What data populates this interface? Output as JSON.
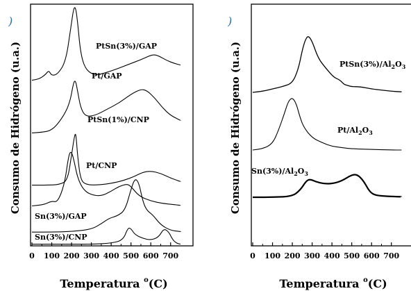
{
  "chart_data": [
    {
      "type": "line",
      "panel_mark": ")",
      "ylabel": "Consumo de Hidrógeno (u.a.)",
      "xlabel": "Temperatura °(C)",
      "xlabel_parts": {
        "main": "Temperatura ",
        "sup": "o",
        "unit": "(C)"
      },
      "xlim": [
        0,
        750
      ],
      "xticks": [
        0,
        100,
        200,
        300,
        400,
        500,
        600,
        700
      ],
      "xtick_labels": [
        "0",
        "100",
        "200",
        "300",
        "400",
        "500",
        "600",
        "700"
      ],
      "series": [
        {
          "name": "PtSn(3%)/GAP",
          "label_parts": {
            "pre": "PtSn(3%)/GAP",
            "sub": "",
            "post": ""
          },
          "width": 1.1,
          "x": [
            0,
            40,
            70,
            85,
            100,
            130,
            170,
            195,
            210,
            220,
            230,
            245,
            270,
            320,
            400,
            480,
            560,
            610,
            640,
            680,
            720,
            750
          ],
          "y": [
            0.04,
            0.06,
            0.12,
            0.17,
            0.1,
            0.12,
            0.28,
            0.7,
            0.98,
            1.0,
            0.82,
            0.4,
            0.18,
            0.1,
            0.16,
            0.24,
            0.32,
            0.38,
            0.36,
            0.3,
            0.26,
            0.24
          ]
        },
        {
          "name": "Pt/GAP",
          "label_parts": {
            "pre": "Pt/GAP",
            "sub": "",
            "post": ""
          },
          "width": 1.1,
          "x": [
            0,
            50,
            100,
            150,
            190,
            210,
            220,
            230,
            245,
            270,
            320,
            380,
            440,
            500,
            550,
            580,
            620,
            660,
            700,
            750
          ],
          "y": [
            0.04,
            0.05,
            0.08,
            0.26,
            0.5,
            0.85,
            0.88,
            0.72,
            0.45,
            0.3,
            0.32,
            0.42,
            0.52,
            0.66,
            0.74,
            0.72,
            0.6,
            0.44,
            0.32,
            0.24
          ]
        },
        {
          "name": "PtSn(1%)/CNP",
          "label_parts": {
            "pre": "PtSn(1%)/CNP",
            "sub": "",
            "post": ""
          },
          "width": 1.1,
          "x": [
            0,
            80,
            140,
            180,
            200,
            215,
            222,
            230,
            245,
            270,
            330,
            420,
            500,
            560,
            600,
            650,
            700,
            750
          ],
          "y": [
            0.04,
            0.04,
            0.05,
            0.12,
            0.55,
            0.88,
            0.92,
            0.55,
            0.14,
            0.05,
            0.04,
            0.08,
            0.16,
            0.26,
            0.28,
            0.24,
            0.16,
            0.1
          ]
        },
        {
          "name": "Pt/CNP",
          "label_parts": {
            "pre": "Pt/CNP",
            "sub": "",
            "post": ""
          },
          "width": 1.1,
          "x": [
            0,
            60,
            100,
            130,
            165,
            185,
            197,
            210,
            230,
            260,
            300,
            350,
            400,
            440,
            480,
            500,
            540,
            600,
            660,
            720,
            750
          ],
          "y": [
            0.04,
            0.06,
            0.12,
            0.1,
            0.4,
            0.86,
            0.94,
            0.82,
            0.5,
            0.3,
            0.22,
            0.2,
            0.28,
            0.36,
            0.4,
            0.36,
            0.2,
            0.12,
            0.08,
            0.06,
            0.05
          ]
        },
        {
          "name": "Sn(3%)/GAP",
          "label_parts": {
            "pre": "Sn(3%)/GAP",
            "sub": "",
            "post": ""
          },
          "width": 1.1,
          "x": [
            0,
            100,
            200,
            300,
            350,
            390,
            430,
            470,
            500,
            520,
            540,
            560,
            580,
            610,
            650,
            700,
            750
          ],
          "y": [
            0.01,
            0.01,
            0.02,
            0.06,
            0.16,
            0.26,
            0.3,
            0.4,
            0.78,
            0.98,
            0.9,
            0.56,
            0.4,
            0.32,
            0.14,
            0.04,
            0.02
          ]
        },
        {
          "name": "Sn(3%)/CNP",
          "label_parts": {
            "pre": "Sn(3%)/CNP",
            "sub": "",
            "post": ""
          },
          "width": 1.1,
          "x": [
            0,
            100,
            200,
            300,
            400,
            460,
            485,
            500,
            520,
            560,
            600,
            640,
            665,
            690,
            710,
            730,
            750
          ],
          "y": [
            0.01,
            0.01,
            0.01,
            0.01,
            0.04,
            0.14,
            0.55,
            0.52,
            0.32,
            0.2,
            0.14,
            0.24,
            0.52,
            0.42,
            0.16,
            0.04,
            0.01
          ]
        }
      ]
    },
    {
      "type": "line",
      "panel_mark": ")",
      "ylabel": "Consumo de Hidrógeno (u.a.)",
      "xlabel": "Temperatura °(C)",
      "xlabel_parts": {
        "main": "Temperatura ",
        "sup": "o",
        "unit": "(C)"
      },
      "xlim": [
        0,
        750
      ],
      "xticks": [
        0,
        100,
        200,
        300,
        400,
        500,
        600,
        700
      ],
      "xtick_labels": [
        "0",
        "100",
        "200",
        "300",
        "400",
        "500",
        "600",
        "700"
      ],
      "series": [
        {
          "name": "PtSn(3%)/Al2O3",
          "label_parts": {
            "pre": "PtSn(3%)/Al",
            "sub": "2",
            "post": "O",
            "sub2": "3"
          },
          "width": 1.3,
          "x": [
            0,
            50,
            100,
            150,
            200,
            230,
            250,
            265,
            280,
            300,
            330,
            370,
            410,
            440,
            460,
            480,
            500,
            540,
            600,
            650,
            700,
            750
          ],
          "y": [
            0.0,
            0.02,
            0.06,
            0.1,
            0.16,
            0.4,
            0.74,
            0.92,
            1.0,
            0.9,
            0.6,
            0.42,
            0.26,
            0.22,
            0.14,
            0.12,
            0.1,
            0.1,
            0.06,
            0.04,
            0.02,
            0.01
          ]
        },
        {
          "name": "Pt/Al2O3",
          "label_parts": {
            "pre": "Pt/Al",
            "sub": "2",
            "post": "O",
            "sub2": "3"
          },
          "width": 1.1,
          "x": [
            0,
            50,
            100,
            130,
            160,
            180,
            200,
            220,
            240,
            260,
            300,
            350,
            400,
            450,
            500,
            600,
            700,
            750
          ],
          "y": [
            0.0,
            0.02,
            0.1,
            0.32,
            0.6,
            0.8,
            0.86,
            0.76,
            0.52,
            0.36,
            0.2,
            0.12,
            0.06,
            0.04,
            0.02,
            0.01,
            0.0,
            0.0
          ]
        },
        {
          "name": "Sn(3%)/Al2O3",
          "label_parts": {
            "pre": "Sn(3%)/Al",
            "sub": "2",
            "post": "O",
            "sub2": "3"
          },
          "width": 2.2,
          "x": [
            0,
            100,
            200,
            240,
            270,
            290,
            320,
            360,
            400,
            450,
            500,
            530,
            560,
            590,
            620,
            680,
            750
          ],
          "y": [
            0.0,
            0.0,
            0.02,
            0.16,
            0.36,
            0.4,
            0.34,
            0.3,
            0.3,
            0.36,
            0.5,
            0.5,
            0.36,
            0.12,
            0.04,
            0.02,
            0.01
          ]
        }
      ]
    }
  ]
}
